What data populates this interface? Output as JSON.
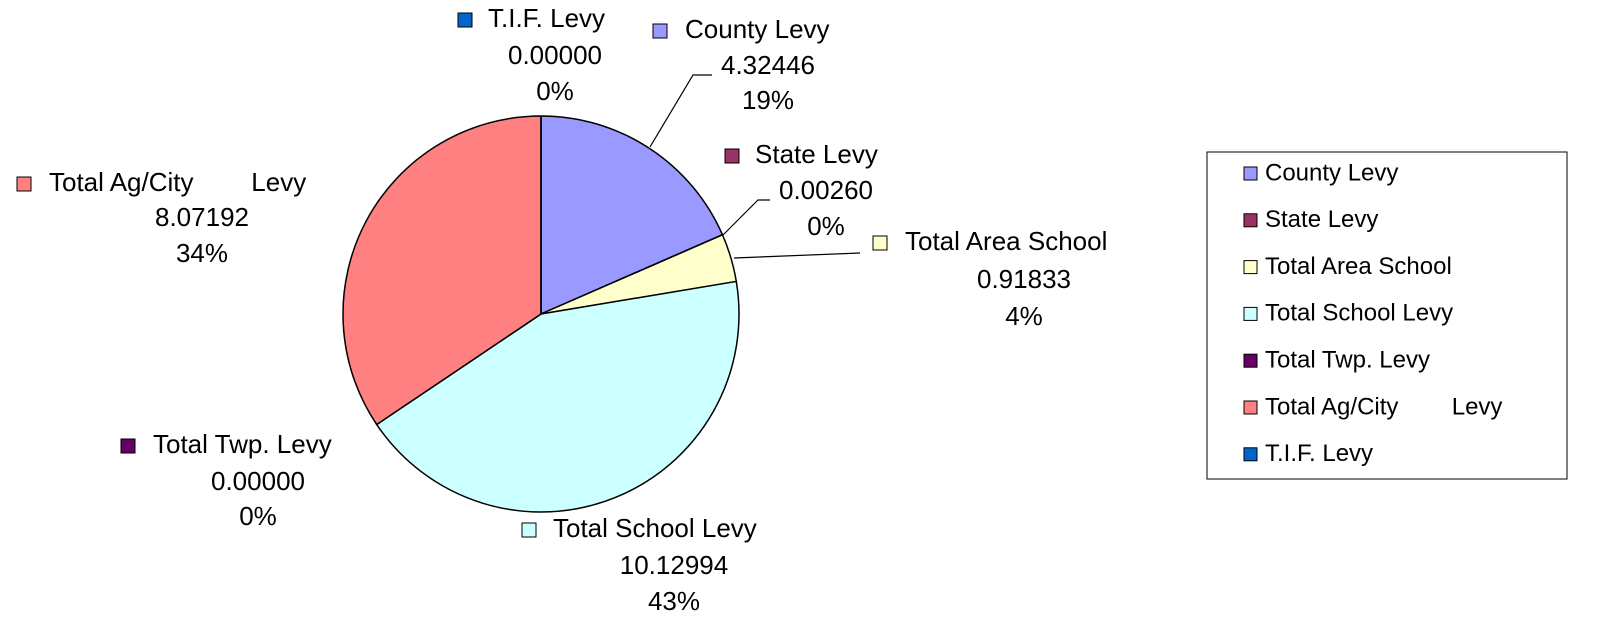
{
  "chart_data": {
    "type": "pie",
    "categories": [
      "County Levy",
      "State Levy",
      "Total Area School",
      "Total School Levy",
      "Total Twp. Levy",
      "Total Ag/City        Levy",
      "T.I.F. Levy"
    ],
    "values": [
      4.32446,
      0.0026,
      0.91833,
      10.12994,
      0,
      8.07192,
      0
    ],
    "value_labels": [
      "4.32446",
      "0.00260",
      "0.91833",
      "10.12994",
      "0.00000",
      "8.07192",
      "0.00000"
    ],
    "percent_labels": [
      "19%",
      "0%",
      "4%",
      "43%",
      "0%",
      "34%",
      "0%"
    ],
    "colors": [
      "#9999FF",
      "#993366",
      "#FFFFCC",
      "#CCFFFF",
      "#660066",
      "#FF8080",
      "#0066CC"
    ],
    "legend": "right"
  }
}
